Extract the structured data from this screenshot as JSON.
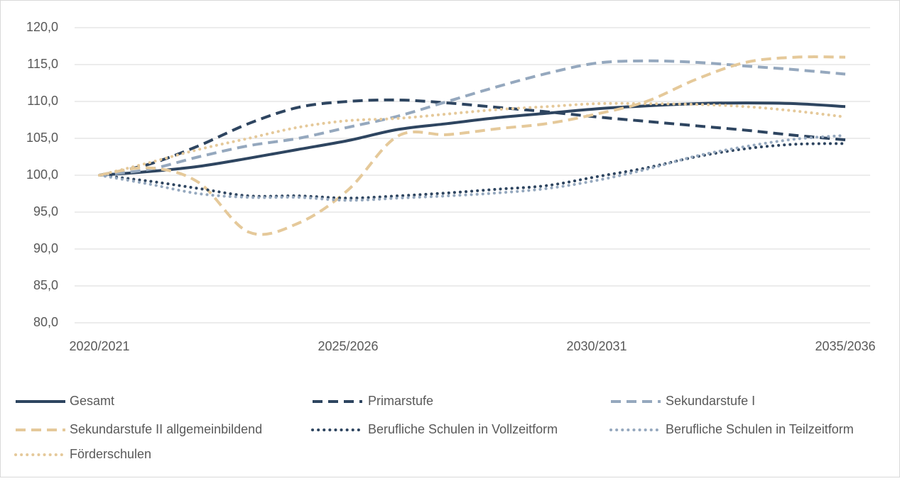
{
  "chart_data": {
    "type": "line",
    "categories": [
      "2020/2021",
      null,
      null,
      null,
      null,
      "2025/2026",
      null,
      null,
      null,
      null,
      "2030/2031",
      null,
      null,
      null,
      null,
      "2035/2036"
    ],
    "series": [
      {
        "name": "Gesamt",
        "color": "#2e4560",
        "style": "solid",
        "values": [
          100,
          100.5,
          101.2,
          102.3,
          103.5,
          104.7,
          106.2,
          107,
          107.8,
          108.4,
          109,
          109.4,
          109.7,
          109.8,
          109.7,
          109.3
        ]
      },
      {
        "name": "Primarstufe",
        "color": "#2e4560",
        "style": "dashed",
        "values": [
          100,
          101.5,
          104,
          107,
          109.2,
          110,
          110.2,
          109.8,
          109.2,
          108.6,
          107.9,
          107.3,
          106.7,
          106.1,
          105.4,
          104.8
        ]
      },
      {
        "name": "Sekundarstufe I",
        "color": "#95a8be",
        "style": "dashed",
        "values": [
          100,
          100.8,
          102.5,
          104,
          105,
          106.5,
          108,
          110,
          112,
          113.8,
          115.2,
          115.5,
          115.3,
          114.8,
          114.3,
          113.7
        ]
      },
      {
        "name": "Sekundarstufe II allgemeinbildend",
        "color": "#e5c99a",
        "style": "dashed",
        "values": [
          100,
          101,
          99,
          92.3,
          93.5,
          98,
          105.3,
          105.5,
          106.3,
          107,
          108.3,
          110,
          113,
          115.3,
          116,
          116
        ]
      },
      {
        "name": "Berufliche Schulen in Vollzeitform",
        "color": "#2e4560",
        "style": "dotted",
        "values": [
          100,
          99.2,
          98.2,
          97.2,
          97.2,
          96.9,
          97.2,
          97.6,
          98.1,
          98.6,
          99.8,
          101,
          102.5,
          103.6,
          104.2,
          104.3
        ]
      },
      {
        "name": "Berufliche Schulen in Teilzeitform",
        "color": "#95a8be",
        "style": "dotted",
        "values": [
          100,
          98.8,
          97.5,
          97,
          97,
          96.6,
          96.9,
          97.2,
          97.6,
          98.2,
          99.3,
          100.8,
          102.6,
          103.9,
          104.9,
          105.4
        ]
      },
      {
        "name": "Förderschulen",
        "color": "#e5c99a",
        "style": "dotted",
        "values": [
          100,
          101.7,
          103.5,
          105,
          106.5,
          107.4,
          107.7,
          108.3,
          108.9,
          109.3,
          109.7,
          109.7,
          109.6,
          109.3,
          108.7,
          107.9
        ]
      }
    ],
    "ylim": [
      80,
      120
    ],
    "yticks": [
      {
        "value": 80,
        "label": "80,0"
      },
      {
        "value": 85,
        "label": "85,0"
      },
      {
        "value": 90,
        "label": "90,0"
      },
      {
        "value": 95,
        "label": "95,0"
      },
      {
        "value": 100,
        "label": "100,0"
      },
      {
        "value": 105,
        "label": "105,0"
      },
      {
        "value": 110,
        "label": "110,0"
      },
      {
        "value": 115,
        "label": "115,0"
      },
      {
        "value": 120,
        "label": "120,0"
      }
    ],
    "grid": true,
    "legend": "bottom"
  }
}
